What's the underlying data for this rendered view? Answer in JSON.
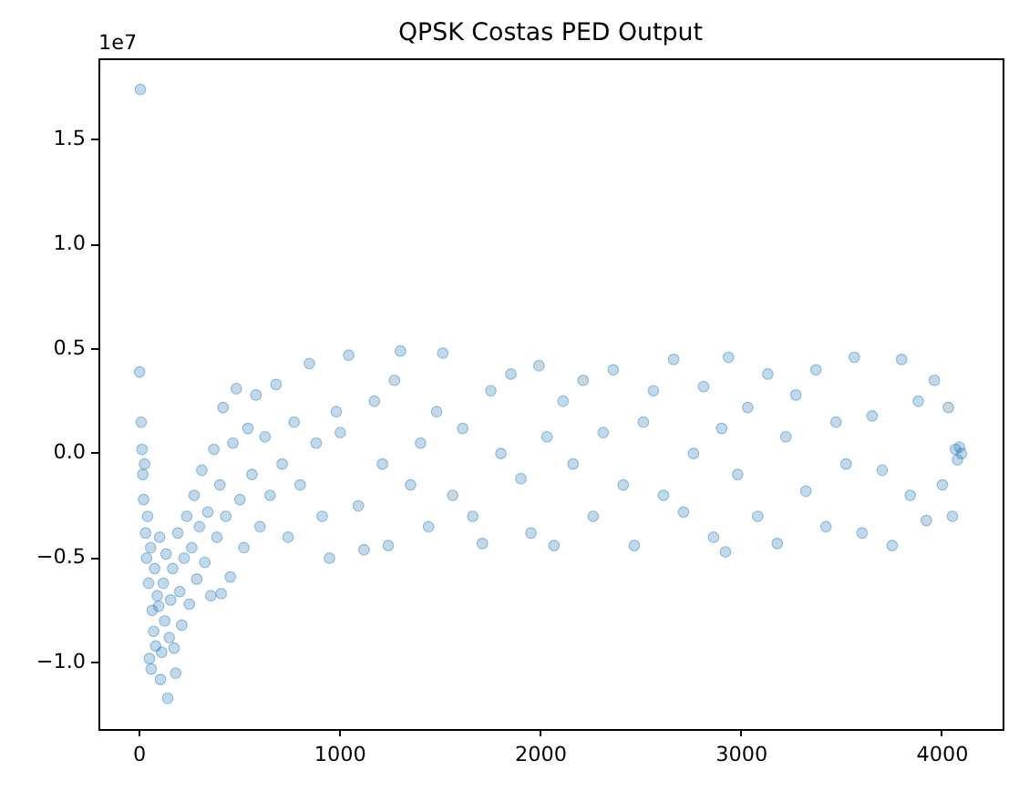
{
  "chart_data": {
    "type": "scatter",
    "title": "QPSK Costas PED Output",
    "annotations": [
      "1e7"
    ],
    "x": [
      0,
      4,
      8,
      12,
      16,
      20,
      25,
      30,
      35,
      40,
      45,
      49,
      55,
      58,
      63,
      70,
      75,
      80,
      88,
      95,
      100,
      104,
      110,
      118,
      125,
      132,
      140,
      148,
      155,
      165,
      172,
      180,
      190,
      200,
      210,
      222,
      235,
      248,
      260,
      272,
      285,
      298,
      310,
      325,
      340,
      355,
      370,
      385,
      400,
      407,
      416,
      430,
      452,
      465,
      482,
      500,
      520,
      540,
      560,
      580,
      600,
      625,
      650,
      680,
      710,
      740,
      770,
      800,
      846,
      880,
      910,
      946,
      980,
      1000,
      1042,
      1090,
      1118,
      1170,
      1210,
      1239,
      1270,
      1300,
      1350,
      1400,
      1440,
      1480,
      1511,
      1560,
      1610,
      1660,
      1708,
      1750,
      1800,
      1850,
      1900,
      1950,
      1990,
      2030,
      2065,
      2110,
      2160,
      2210,
      2260,
      2310,
      2360,
      2410,
      2465,
      2510,
      2560,
      2610,
      2661,
      2710,
      2760,
      2810,
      2860,
      2900,
      2919,
      2934,
      2980,
      3030,
      3080,
      3130,
      3177,
      3220,
      3270,
      3320,
      3370,
      3420,
      3470,
      3520,
      3561,
      3600,
      3650,
      3700,
      3750,
      3797,
      3840,
      3880,
      3920,
      3960,
      4000,
      4030,
      4050,
      4065,
      4075,
      4085,
      4095
    ],
    "values": [
      0.39,
      1.74,
      0.15,
      0.02,
      -0.1,
      -0.22,
      -0.05,
      -0.38,
      -0.5,
      -0.3,
      -0.62,
      -0.98,
      -0.45,
      -1.03,
      -0.75,
      -0.85,
      -0.55,
      -0.92,
      -0.68,
      -0.73,
      -0.4,
      -1.08,
      -0.95,
      -0.62,
      -0.8,
      -0.48,
      -1.17,
      -0.88,
      -0.7,
      -0.55,
      -0.93,
      -1.05,
      -0.38,
      -0.66,
      -0.82,
      -0.5,
      -0.3,
      -0.72,
      -0.45,
      -0.2,
      -0.6,
      -0.35,
      -0.08,
      -0.52,
      -0.28,
      -0.68,
      0.02,
      -0.4,
      -0.15,
      -0.67,
      0.22,
      -0.3,
      -0.59,
      0.05,
      0.31,
      -0.22,
      -0.45,
      0.12,
      -0.1,
      0.28,
      -0.35,
      0.08,
      -0.2,
      0.33,
      -0.05,
      -0.4,
      0.15,
      -0.15,
      0.43,
      0.05,
      -0.3,
      -0.5,
      0.2,
      0.1,
      0.47,
      -0.25,
      -0.46,
      0.25,
      -0.05,
      -0.44,
      0.35,
      0.49,
      -0.15,
      0.05,
      -0.35,
      0.2,
      0.48,
      -0.2,
      0.12,
      -0.3,
      -0.43,
      0.3,
      0.0,
      0.38,
      -0.12,
      -0.38,
      0.42,
      0.08,
      -0.44,
      0.25,
      -0.05,
      0.35,
      -0.3,
      0.1,
      0.4,
      -0.15,
      -0.44,
      0.15,
      0.3,
      -0.2,
      0.45,
      -0.28,
      0.0,
      0.32,
      -0.4,
      0.12,
      -0.47,
      0.46,
      -0.1,
      0.22,
      -0.3,
      0.38,
      -0.43,
      0.08,
      0.28,
      -0.18,
      0.4,
      -0.35,
      0.15,
      -0.05,
      0.46,
      -0.38,
      0.18,
      -0.08,
      -0.44,
      0.45,
      -0.2,
      0.25,
      -0.32,
      0.35,
      -0.15,
      0.22,
      -0.3,
      0.02,
      -0.03,
      0.03,
      0.0
    ],
    "color": "#1f77b4",
    "marker": "circle",
    "xlim": [
      -205,
      4300
    ],
    "xticks": [
      0,
      1000,
      2000,
      3000,
      4000
    ],
    "ylim": [
      -1.317,
      1.889
    ],
    "yticks": [
      {
        "value": -1,
        "label": "−1.0"
      },
      {
        "value": -0.5,
        "label": "−0.5"
      },
      {
        "value": 0,
        "label": "0.0"
      },
      {
        "value": 0.5,
        "label": "0.5"
      },
      {
        "value": 1,
        "label": "1.0"
      },
      1.5
    ],
    "grid": false,
    "legend": false
  }
}
